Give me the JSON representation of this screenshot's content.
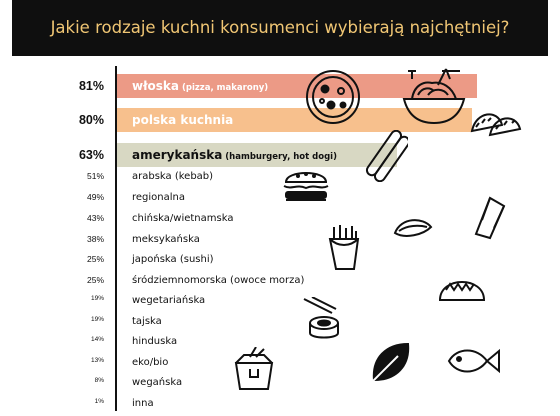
{
  "title": "Jakie rodzaje kuchni konsumenci wybierają najchętniej?",
  "colors": {
    "header_bg": "#0f0f0f",
    "title": "#f0c674",
    "bar_italian": "#ec9a86",
    "bar_polish": "#f7c08d",
    "bar_american": "#d8d8c3"
  },
  "icons": [
    "pizza-icon",
    "spaghetti-icon",
    "dumplings-icon",
    "sausages-icon",
    "hamburger-icon",
    "burrito-icon",
    "mussel-icon",
    "fries-icon",
    "taco-icon",
    "sushi-icon",
    "leaf-icon",
    "fish-icon",
    "noodle-box-icon"
  ],
  "chart_data": {
    "type": "bar",
    "orientation": "horizontal",
    "title": "Jakie rodzaje kuchni konsumenci wybierają najchętniej?",
    "value_unit": "%",
    "xlim": [
      0,
      100
    ],
    "categories": [
      {
        "name": "włoska",
        "note": "(pizza, makarony)"
      },
      {
        "name": "polska kuchnia",
        "note": ""
      },
      {
        "name": "amerykańska",
        "note": "(hamburgery, hot dogi)"
      },
      {
        "name": "arabska (kebab)",
        "note": ""
      },
      {
        "name": "regionalna",
        "note": ""
      },
      {
        "name": "chińska/wietnamska",
        "note": ""
      },
      {
        "name": "meksykańska",
        "note": ""
      },
      {
        "name": "japońska (sushi)",
        "note": ""
      },
      {
        "name": "śródziemnomorska (owoce morza)",
        "note": ""
      },
      {
        "name": "wegetariańska",
        "note": ""
      },
      {
        "name": "tajska",
        "note": ""
      },
      {
        "name": "hinduska",
        "note": ""
      },
      {
        "name": "eko/bio",
        "note": ""
      },
      {
        "name": "wegańska",
        "note": ""
      },
      {
        "name": "inna",
        "note": ""
      }
    ],
    "labels": [
      "81%",
      "80%",
      "63%",
      "51%",
      "49%",
      "43%",
      "38%",
      "25%",
      "25%",
      "19%",
      "19%",
      "14%",
      "13%",
      "8%",
      "1%"
    ],
    "values": [
      81,
      80,
      63,
      51,
      49,
      43,
      38,
      25,
      25,
      19,
      19,
      14,
      13,
      8,
      1
    ],
    "bars_drawn_for_top": 3
  }
}
